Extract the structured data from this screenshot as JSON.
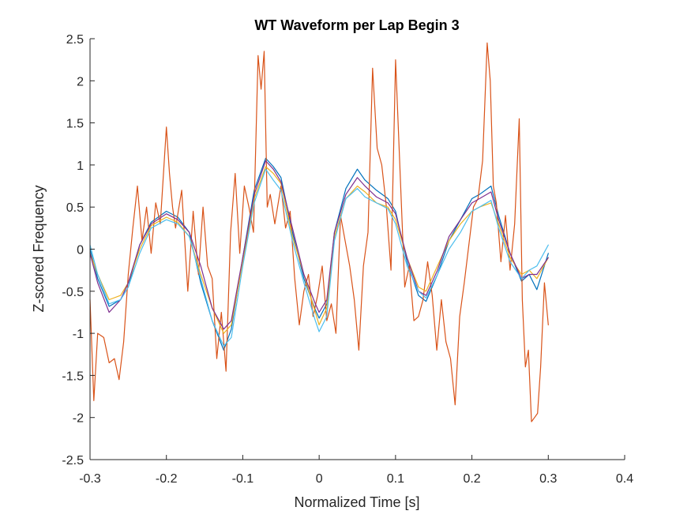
{
  "chart_data": {
    "type": "line",
    "title": "WT Waveform per Lap Begin 3",
    "xlabel": "Normalized Time [s]",
    "ylabel": "Z-scored Frequency",
    "xlim": [
      -0.3,
      0.4
    ],
    "ylim": [
      -2.5,
      2.5
    ],
    "xticks": [
      -0.3,
      -0.2,
      -0.1,
      0,
      0.1,
      0.2,
      0.3,
      0.4
    ],
    "xtick_labels": [
      "-0.3",
      "-0.2",
      "-0.1",
      "0",
      "0.1",
      "0.2",
      "0.3",
      "0.4"
    ],
    "yticks": [
      -2.5,
      -2,
      -1.5,
      -1,
      -0.5,
      0,
      0.5,
      1,
      1.5,
      2,
      2.5
    ],
    "ytick_labels": [
      "-2.5",
      "-2",
      "-1.5",
      "-1",
      "-0.5",
      "0",
      "0.5",
      "1",
      "1.5",
      "2",
      "2.5"
    ],
    "grid": false,
    "legend": "none",
    "series": [
      {
        "color": "#0072BD",
        "x": [
          -0.3,
          -0.29,
          -0.275,
          -0.26,
          -0.25,
          -0.235,
          -0.22,
          -0.2,
          -0.185,
          -0.17,
          -0.155,
          -0.14,
          -0.125,
          -0.115,
          -0.1,
          -0.085,
          -0.07,
          -0.06,
          -0.05,
          -0.035,
          -0.02,
          -0.005,
          0,
          0.01,
          0.02,
          0.035,
          0.05,
          0.06,
          0.075,
          0.09,
          0.1,
          0.115,
          0.13,
          0.14,
          0.155,
          0.17,
          0.185,
          0.2,
          0.21,
          0.225,
          0.235,
          0.25,
          0.265,
          0.275,
          0.285,
          0.3
        ],
        "y": [
          0,
          -0.35,
          -0.68,
          -0.6,
          -0.45,
          0.05,
          0.32,
          0.45,
          0.38,
          0.2,
          -0.4,
          -0.85,
          -1.2,
          -0.95,
          -0.1,
          0.7,
          1.08,
          0.98,
          0.85,
          0.2,
          -0.35,
          -0.72,
          -0.82,
          -0.65,
          0.2,
          0.72,
          0.95,
          0.82,
          0.7,
          0.6,
          0.45,
          -0.15,
          -0.55,
          -0.62,
          -0.3,
          0.1,
          0.35,
          0.6,
          0.65,
          0.75,
          0.4,
          -0.05,
          -0.38,
          -0.3,
          -0.48,
          -0.05
        ]
      },
      {
        "color": "#D95319",
        "x": [
          -0.3,
          -0.295,
          -0.29,
          -0.282,
          -0.275,
          -0.268,
          -0.262,
          -0.256,
          -0.25,
          -0.244,
          -0.238,
          -0.232,
          -0.226,
          -0.22,
          -0.214,
          -0.208,
          -0.2,
          -0.196,
          -0.192,
          -0.188,
          -0.18,
          -0.172,
          -0.165,
          -0.158,
          -0.152,
          -0.146,
          -0.14,
          -0.134,
          -0.128,
          -0.122,
          -0.116,
          -0.11,
          -0.104,
          -0.098,
          -0.092,
          -0.086,
          -0.08,
          -0.076,
          -0.072,
          -0.068,
          -0.064,
          -0.058,
          -0.05,
          -0.044,
          -0.038,
          -0.032,
          -0.026,
          -0.02,
          -0.014,
          -0.008,
          -0.002,
          0.004,
          0.01,
          0.016,
          0.022,
          0.028,
          0.034,
          0.04,
          0.046,
          0.052,
          0.058,
          0.064,
          0.07,
          0.076,
          0.082,
          0.088,
          0.094,
          0.1,
          0.106,
          0.112,
          0.118,
          0.124,
          0.13,
          0.136,
          0.142,
          0.148,
          0.154,
          0.16,
          0.166,
          0.172,
          0.178,
          0.184,
          0.19,
          0.196,
          0.202,
          0.208,
          0.214,
          0.22,
          0.224,
          0.228,
          0.232,
          0.238,
          0.244,
          0.25,
          0.256,
          0.262,
          0.266,
          0.27,
          0.274,
          0.278,
          0.282,
          0.286,
          0.29,
          0.295,
          0.3
        ],
        "y": [
          -0.6,
          -1.8,
          -1.0,
          -1.05,
          -1.35,
          -1.3,
          -1.55,
          -1.1,
          -0.3,
          0.25,
          0.75,
          0.1,
          0.5,
          -0.05,
          0.55,
          0.3,
          1.45,
          0.9,
          0.5,
          0.25,
          0.7,
          -0.5,
          0.45,
          -0.3,
          0.5,
          -0.2,
          -0.35,
          -1.3,
          -0.75,
          -1.45,
          0.2,
          0.9,
          -0.05,
          0.75,
          0.5,
          0.2,
          2.3,
          1.9,
          2.35,
          0.5,
          0.65,
          0.3,
          0.75,
          0.25,
          0.45,
          -0.35,
          -0.9,
          -0.5,
          -0.3,
          -0.8,
          -0.55,
          -0.2,
          -0.85,
          -0.65,
          -1.0,
          0.4,
          0.1,
          -0.2,
          -0.6,
          -1.2,
          -0.2,
          0.2,
          2.15,
          1.2,
          1.0,
          0.5,
          -0.25,
          2.25,
          0.9,
          -0.45,
          -0.2,
          -0.85,
          -0.8,
          -0.6,
          -0.15,
          -0.55,
          -1.2,
          -0.6,
          -1.1,
          -1.3,
          -1.85,
          -0.8,
          -0.4,
          0.05,
          0.5,
          0.6,
          1.05,
          2.45,
          2.0,
          0.75,
          0.55,
          -0.15,
          0.4,
          -0.25,
          0.3,
          1.55,
          -0.6,
          -1.4,
          -1.2,
          -2.05,
          -2.0,
          -1.95,
          -1.4,
          -0.4,
          -0.9
        ]
      },
      {
        "color": "#EDB120",
        "x": [
          -0.3,
          -0.29,
          -0.275,
          -0.26,
          -0.25,
          -0.235,
          -0.22,
          -0.2,
          -0.185,
          -0.17,
          -0.155,
          -0.14,
          -0.125,
          -0.115,
          -0.1,
          -0.085,
          -0.07,
          -0.06,
          -0.05,
          -0.035,
          -0.02,
          -0.005,
          0,
          0.01,
          0.02,
          0.035,
          0.05,
          0.06,
          0.075,
          0.09,
          0.1,
          0.115,
          0.13,
          0.14,
          0.155,
          0.17,
          0.185,
          0.2,
          0.21,
          0.225,
          0.235,
          0.25,
          0.265,
          0.275,
          0.285,
          0.3
        ],
        "y": [
          -0.05,
          -0.3,
          -0.6,
          -0.55,
          -0.4,
          0.0,
          0.28,
          0.38,
          0.32,
          0.15,
          -0.3,
          -0.7,
          -1.0,
          -0.9,
          -0.15,
          0.6,
          0.98,
          0.9,
          0.78,
          0.15,
          -0.3,
          -0.75,
          -0.9,
          -0.7,
          0.15,
          0.6,
          0.75,
          0.68,
          0.55,
          0.5,
          0.35,
          -0.1,
          -0.45,
          -0.5,
          -0.2,
          0.1,
          0.3,
          0.45,
          0.5,
          0.55,
          0.3,
          -0.1,
          -0.3,
          -0.25,
          -0.35,
          -0.1
        ]
      },
      {
        "color": "#7E2F8E",
        "x": [
          -0.3,
          -0.29,
          -0.275,
          -0.26,
          -0.25,
          -0.235,
          -0.22,
          -0.2,
          -0.185,
          -0.17,
          -0.155,
          -0.14,
          -0.125,
          -0.115,
          -0.1,
          -0.085,
          -0.07,
          -0.06,
          -0.05,
          -0.035,
          -0.02,
          -0.005,
          0,
          0.01,
          0.02,
          0.035,
          0.05,
          0.06,
          0.075,
          0.09,
          0.1,
          0.115,
          0.13,
          0.14,
          0.155,
          0.17,
          0.185,
          0.2,
          0.21,
          0.225,
          0.235,
          0.25,
          0.265,
          0.275,
          0.285,
          0.3
        ],
        "y": [
          -0.05,
          -0.4,
          -0.75,
          -0.6,
          -0.4,
          0.05,
          0.3,
          0.42,
          0.35,
          0.2,
          -0.2,
          -0.7,
          -0.95,
          -0.85,
          -0.1,
          0.65,
          1.05,
          0.95,
          0.8,
          0.25,
          -0.3,
          -0.65,
          -0.75,
          -0.6,
          0.2,
          0.65,
          0.85,
          0.75,
          0.62,
          0.55,
          0.42,
          -0.1,
          -0.5,
          -0.55,
          -0.25,
          0.15,
          0.35,
          0.55,
          0.6,
          0.68,
          0.35,
          -0.05,
          -0.35,
          -0.3,
          -0.3,
          -0.1
        ]
      },
      {
        "color": "#4DBEEE",
        "x": [
          -0.3,
          -0.29,
          -0.275,
          -0.26,
          -0.25,
          -0.235,
          -0.22,
          -0.2,
          -0.185,
          -0.17,
          -0.155,
          -0.14,
          -0.125,
          -0.115,
          -0.1,
          -0.085,
          -0.07,
          -0.06,
          -0.05,
          -0.035,
          -0.02,
          -0.005,
          0,
          0.01,
          0.02,
          0.035,
          0.05,
          0.06,
          0.075,
          0.09,
          0.1,
          0.115,
          0.13,
          0.14,
          0.155,
          0.17,
          0.185,
          0.2,
          0.21,
          0.225,
          0.235,
          0.25,
          0.265,
          0.275,
          0.285,
          0.3
        ],
        "y": [
          0.05,
          -0.3,
          -0.65,
          -0.6,
          -0.45,
          -0.05,
          0.25,
          0.35,
          0.3,
          0.15,
          -0.35,
          -0.85,
          -1.15,
          -1.05,
          -0.2,
          0.55,
          0.95,
          0.82,
          0.7,
          0.1,
          -0.4,
          -0.85,
          -0.98,
          -0.8,
          0.1,
          0.6,
          0.72,
          0.62,
          0.55,
          0.48,
          0.3,
          -0.2,
          -0.5,
          -0.58,
          -0.3,
          0.0,
          0.2,
          0.45,
          0.5,
          0.58,
          0.25,
          -0.15,
          -0.35,
          -0.25,
          -0.2,
          0.05
        ]
      }
    ]
  }
}
